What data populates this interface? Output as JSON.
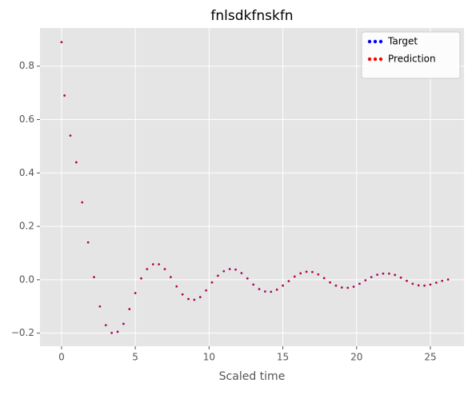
{
  "chart_data": {
    "type": "scatter",
    "title": "fnlsdkfnskfn",
    "xlabel": "Scaled time",
    "x": [
      0,
      0.2,
      0.6,
      1.0,
      1.4,
      1.8,
      2.2,
      2.6,
      3.0,
      3.4,
      3.8,
      4.2,
      4.6,
      5.0,
      5.4,
      5.8,
      6.2,
      6.6,
      7.0,
      7.4,
      7.8,
      8.2,
      8.6,
      9.0,
      9.4,
      9.8,
      10.2,
      10.6,
      11.0,
      11.4,
      11.8,
      12.2,
      12.6,
      13.0,
      13.4,
      13.8,
      14.2,
      14.6,
      15.0,
      15.4,
      15.8,
      16.2,
      16.6,
      17.0,
      17.4,
      17.8,
      18.2,
      18.6,
      19.0,
      19.4,
      19.8,
      20.2,
      20.6,
      21.0,
      21.4,
      21.8,
      22.2,
      22.6,
      23.0,
      23.4,
      23.8,
      24.2,
      24.6,
      25.0,
      25.4,
      25.8,
      26.2
    ],
    "series": [
      {
        "name": "Target",
        "color": "#0000ff",
        "values": [
          0.89,
          0.69,
          0.54,
          0.44,
          0.29,
          0.14,
          0.01,
          -0.1,
          -0.17,
          -0.199,
          -0.195,
          -0.165,
          -0.11,
          -0.05,
          0.005,
          0.04,
          0.058,
          0.058,
          0.04,
          0.01,
          -0.025,
          -0.055,
          -0.072,
          -0.075,
          -0.065,
          -0.04,
          -0.01,
          0.015,
          0.032,
          0.04,
          0.038,
          0.025,
          0.005,
          -0.018,
          -0.035,
          -0.044,
          -0.045,
          -0.037,
          -0.022,
          -0.005,
          0.012,
          0.024,
          0.03,
          0.029,
          0.02,
          0.006,
          -0.01,
          -0.022,
          -0.029,
          -0.03,
          -0.026,
          -0.015,
          -0.002,
          0.01,
          0.019,
          0.023,
          0.023,
          0.018,
          0.008,
          -0.004,
          -0.015,
          -0.021,
          -0.022,
          -0.018,
          -0.011,
          -0.004,
          0.001
        ]
      },
      {
        "name": "Prediction",
        "color": "#ff0000",
        "values": [
          0.89,
          0.69,
          0.54,
          0.44,
          0.29,
          0.14,
          0.01,
          -0.1,
          -0.17,
          -0.199,
          -0.195,
          -0.165,
          -0.11,
          -0.05,
          0.005,
          0.04,
          0.058,
          0.058,
          0.04,
          0.01,
          -0.025,
          -0.055,
          -0.072,
          -0.075,
          -0.065,
          -0.04,
          -0.01,
          0.015,
          0.032,
          0.04,
          0.038,
          0.025,
          0.005,
          -0.018,
          -0.035,
          -0.044,
          -0.045,
          -0.037,
          -0.022,
          -0.005,
          0.012,
          0.024,
          0.03,
          0.029,
          0.02,
          0.006,
          -0.01,
          -0.022,
          -0.029,
          -0.03,
          -0.026,
          -0.015,
          -0.002,
          0.01,
          0.019,
          0.023,
          0.023,
          0.018,
          0.008,
          -0.004,
          -0.015,
          -0.021,
          -0.022,
          -0.018,
          -0.011,
          -0.004,
          0.001
        ]
      }
    ],
    "xlim": [
      -1.46,
      27.28
    ],
    "xticks": [
      0,
      5,
      10,
      15,
      20,
      25
    ],
    "ylim": [
      -0.249,
      0.943
    ],
    "yticks": [
      {
        "value": -0.2,
        "label": "−0.2"
      },
      {
        "value": 0,
        "label": "0.0"
      },
      0.2,
      0.4,
      0.6,
      0.8
    ],
    "grid": true,
    "legend": "upper right"
  }
}
